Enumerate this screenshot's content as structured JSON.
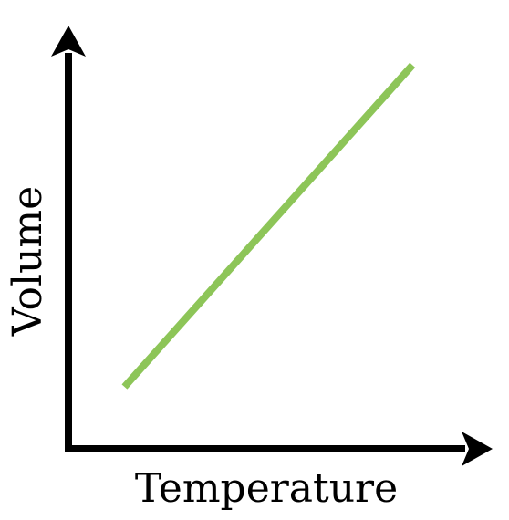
{
  "chart_data": {
    "type": "line",
    "title": "",
    "xlabel": "Temperature",
    "ylabel": "Volume",
    "xlim": [
      0,
      10
    ],
    "ylim": [
      0,
      10
    ],
    "grid": false,
    "ticks": false,
    "series": [
      {
        "x": [
          1.5,
          9.2
        ],
        "y": [
          1.6,
          9.9
        ],
        "color": "#8DC558"
      }
    ],
    "axis_color": "#000000"
  }
}
